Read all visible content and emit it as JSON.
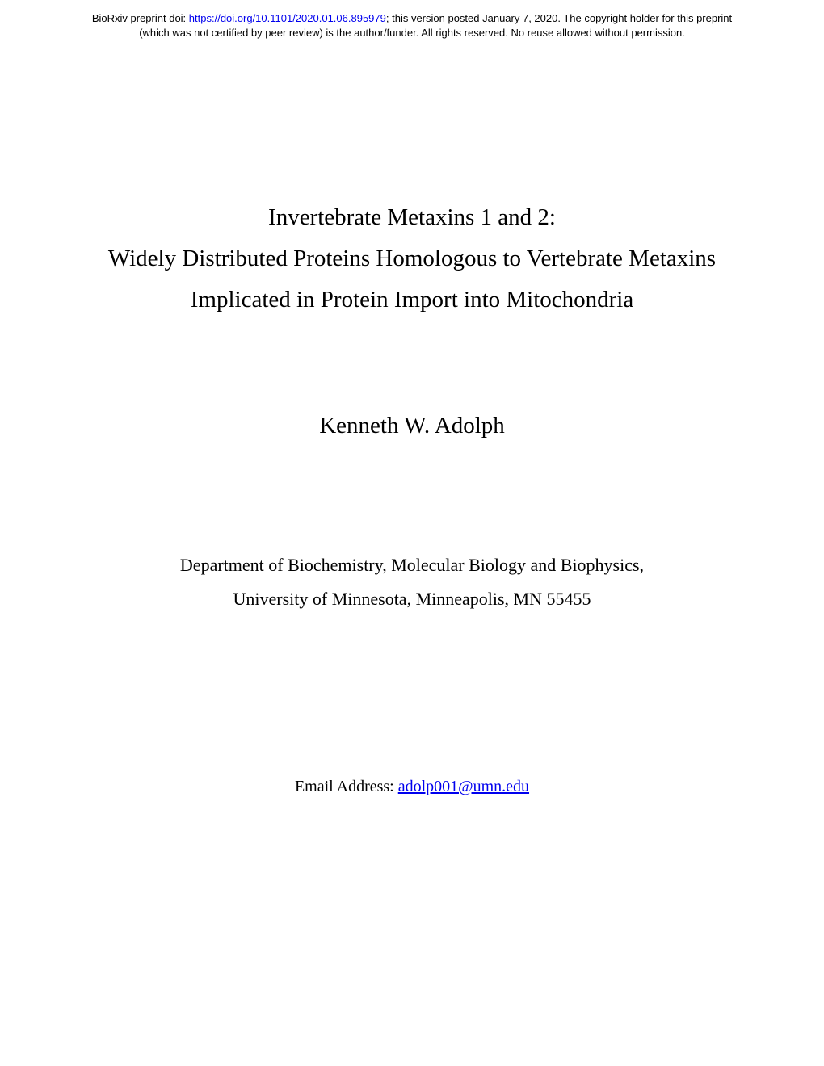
{
  "header": {
    "line1_prefix": "BioRxiv preprint doi: ",
    "doi_link": "https://doi.org/10.1101/2020.01.06.895979",
    "line1_suffix": "; this version posted January 7, 2020. The copyright holder for this preprint",
    "line2": "(which was not certified by peer review) is the author/funder. All rights reserved. No reuse allowed without permission."
  },
  "title": {
    "line1": "Invertebrate Metaxins 1 and 2:",
    "line2": "Widely Distributed Proteins Homologous to Vertebrate Metaxins",
    "line3": "Implicated in Protein Import into Mitochondria"
  },
  "author": "Kenneth W. Adolph",
  "affiliation": {
    "line1": "Department of Biochemistry, Molecular Biology and Biophysics,",
    "line2": "University of Minnesota, Minneapolis, MN 55455"
  },
  "email": {
    "label": "Email Address: ",
    "address": "adolp001@umn.edu"
  }
}
